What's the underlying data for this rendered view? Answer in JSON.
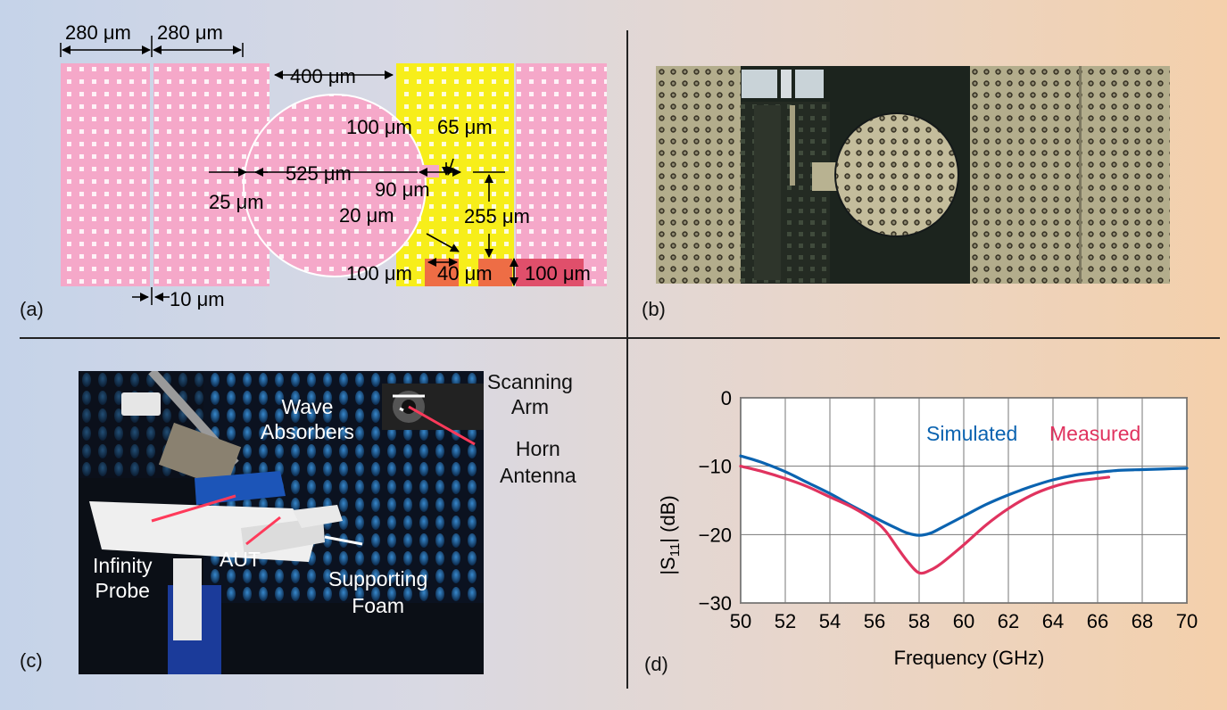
{
  "panels": {
    "a": {
      "label": "(a)",
      "dims": {
        "w280a": "280 μm",
        "w280b": "280 μm",
        "w400": "400 μm",
        "d100a": "100 μm",
        "d65": "65 μm",
        "d525": "525 μm",
        "d90": "90 μm",
        "d25": "25 μm",
        "d20": "20 μm",
        "d255": "255 μm",
        "d100b": "100 μm",
        "d40": "40 μm",
        "d100c": "100 μm",
        "d10": "10 μm"
      }
    },
    "b": {
      "label": "(b)"
    },
    "c": {
      "label": "(c)",
      "annotations": {
        "scanning1": "Scanning",
        "scanning2": "Arm",
        "wave1": "Wave",
        "wave2": "Absorbers",
        "horn1": "Horn",
        "horn2": "Antenna",
        "infinity1": "Infinity",
        "infinity2": "Probe",
        "aut": "AUT",
        "foam1": "Supporting",
        "foam2": "Foam"
      }
    },
    "d": {
      "label": "(d)"
    }
  },
  "colors": {
    "pink": "#f5a8c9",
    "yellow": "#f7ee1a",
    "orange": "#ee6d45",
    "red": "#e04f6b",
    "simulated": "#0b63b0",
    "measured": "#e0335f"
  },
  "chart_data": {
    "type": "line",
    "xlabel": "Frequency (GHz)",
    "ylabel": "|S11| (dB)",
    "xlim": [
      50,
      70
    ],
    "ylim": [
      -30,
      0
    ],
    "xticks": [
      "50",
      "52",
      "54",
      "56",
      "58",
      "60",
      "62",
      "64",
      "66",
      "68",
      "70"
    ],
    "yticks": [
      "0",
      "−10",
      "−20",
      "−30"
    ],
    "grid": true,
    "legend_placement": "top-right, inside",
    "series": [
      {
        "name": "Simulated",
        "x": [
          50,
          51,
          52,
          53,
          54,
          55,
          56,
          57,
          57.5,
          58,
          58.5,
          59,
          60,
          61,
          62,
          63,
          64,
          65,
          66,
          67,
          68,
          69,
          70
        ],
        "y": [
          -8.5,
          -9.5,
          -10.8,
          -12.4,
          -14.0,
          -15.8,
          -17.5,
          -19.1,
          -19.8,
          -20.1,
          -19.8,
          -19.0,
          -17.3,
          -15.6,
          -14.2,
          -13.0,
          -12.0,
          -11.3,
          -10.9,
          -10.6,
          -10.5,
          -10.4,
          -10.3
        ]
      },
      {
        "name": "Measured",
        "x": [
          50,
          51,
          52,
          53,
          54,
          55,
          56,
          56.5,
          57,
          57.5,
          58,
          58.5,
          59,
          60,
          61,
          62,
          63,
          64,
          65,
          66,
          66.5
        ],
        "y": [
          -10.0,
          -10.8,
          -11.8,
          -13.0,
          -14.5,
          -16.0,
          -18.0,
          -19.5,
          -21.8,
          -24.0,
          -25.6,
          -25.2,
          -24.2,
          -21.5,
          -18.6,
          -16.2,
          -14.3,
          -13.0,
          -12.2,
          -11.8,
          -11.6
        ]
      }
    ]
  }
}
